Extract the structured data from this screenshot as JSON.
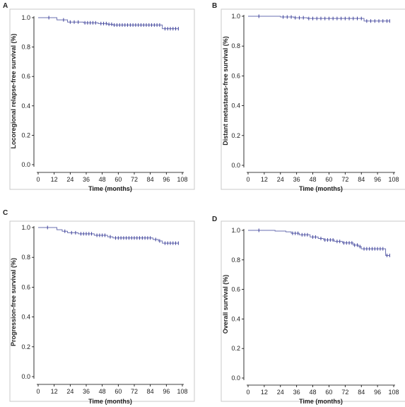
{
  "chart_data": [
    {
      "panel": "A",
      "type": "line",
      "xlabel": "Time (months)",
      "ylabel": "Locoregional relapse-free survival (%)",
      "xticks": [
        0,
        12,
        24,
        36,
        48,
        60,
        72,
        84,
        96,
        108
      ],
      "yticks": [
        "0.0",
        "0.2",
        "0.4",
        "0.6",
        "0.8",
        "1.0"
      ],
      "xlim": [
        0,
        108
      ],
      "ylim": [
        0,
        1.0
      ],
      "series": [
        {
          "steps": [
            [
              0,
              1.0
            ],
            [
              8,
              1.0
            ],
            [
              14,
              0.985
            ],
            [
              22,
              0.97
            ],
            [
              34,
              0.965
            ],
            [
              45,
              0.96
            ],
            [
              52,
              0.955
            ],
            [
              56,
              0.95
            ],
            [
              93,
              0.925
            ],
            [
              105,
              0.925
            ]
          ],
          "censored": [
            [
              8,
              1.0
            ],
            [
              19,
              0.985
            ],
            [
              24,
              0.97
            ],
            [
              27,
              0.97
            ],
            [
              30,
              0.97
            ],
            [
              35,
              0.965
            ],
            [
              37,
              0.965
            ],
            [
              39,
              0.965
            ],
            [
              41,
              0.965
            ],
            [
              43,
              0.965
            ],
            [
              47,
              0.96
            ],
            [
              49,
              0.96
            ],
            [
              51,
              0.96
            ],
            [
              53,
              0.955
            ],
            [
              55,
              0.955
            ],
            [
              57,
              0.95
            ],
            [
              59,
              0.95
            ],
            [
              61,
              0.95
            ],
            [
              63,
              0.95
            ],
            [
              65,
              0.95
            ],
            [
              67,
              0.95
            ],
            [
              69,
              0.95
            ],
            [
              71,
              0.95
            ],
            [
              73,
              0.95
            ],
            [
              75,
              0.95
            ],
            [
              77,
              0.95
            ],
            [
              79,
              0.95
            ],
            [
              81,
              0.95
            ],
            [
              83,
              0.95
            ],
            [
              85,
              0.95
            ],
            [
              87,
              0.95
            ],
            [
              89,
              0.95
            ],
            [
              91,
              0.95
            ],
            [
              95,
              0.925
            ],
            [
              97,
              0.925
            ],
            [
              99,
              0.925
            ],
            [
              101,
              0.925
            ],
            [
              103,
              0.925
            ],
            [
              105,
              0.925
            ]
          ]
        }
      ]
    },
    {
      "panel": "B",
      "type": "line",
      "xlabel": "Time (months)",
      "ylabel": "Distant metastases-free survival (%)",
      "xticks": [
        0,
        12,
        24,
        36,
        48,
        60,
        72,
        84,
        96,
        108
      ],
      "yticks": [
        "0.0",
        "0.2",
        "0.4",
        "0.6",
        "0.8",
        "1.0"
      ],
      "xlim": [
        0,
        108
      ],
      "ylim": [
        0,
        1.0
      ],
      "series": [
        {
          "steps": [
            [
              0,
              1.0
            ],
            [
              18,
              1.0
            ],
            [
              24,
              0.995
            ],
            [
              34,
              0.99
            ],
            [
              44,
              0.985
            ],
            [
              86,
              0.968
            ],
            [
              105,
              0.968
            ]
          ],
          "censored": [
            [
              8,
              1.0
            ],
            [
              26,
              0.995
            ],
            [
              29,
              0.995
            ],
            [
              32,
              0.995
            ],
            [
              35,
              0.99
            ],
            [
              38,
              0.99
            ],
            [
              41,
              0.99
            ],
            [
              45,
              0.985
            ],
            [
              48,
              0.985
            ],
            [
              51,
              0.985
            ],
            [
              54,
              0.985
            ],
            [
              57,
              0.985
            ],
            [
              60,
              0.985
            ],
            [
              63,
              0.985
            ],
            [
              66,
              0.985
            ],
            [
              69,
              0.985
            ],
            [
              72,
              0.985
            ],
            [
              75,
              0.985
            ],
            [
              78,
              0.985
            ],
            [
              81,
              0.985
            ],
            [
              84,
              0.985
            ],
            [
              88,
              0.968
            ],
            [
              91,
              0.968
            ],
            [
              94,
              0.968
            ],
            [
              97,
              0.968
            ],
            [
              100,
              0.968
            ],
            [
              103,
              0.968
            ],
            [
              105,
              0.968
            ]
          ]
        }
      ]
    },
    {
      "panel": "C",
      "type": "line",
      "xlabel": "Time (months)",
      "ylabel": "Progression-free survival (%)",
      "xticks": [
        0,
        12,
        24,
        36,
        48,
        60,
        72,
        84,
        96,
        108
      ],
      "yticks": [
        "0.0",
        "0.2",
        "0.4",
        "0.6",
        "0.8",
        "1.0"
      ],
      "xlim": [
        0,
        108
      ],
      "ylim": [
        0,
        1.0
      ],
      "series": [
        {
          "steps": [
            [
              0,
              1.0
            ],
            [
              10,
              1.0
            ],
            [
              14,
              0.985
            ],
            [
              18,
              0.975
            ],
            [
              22,
              0.965
            ],
            [
              30,
              0.958
            ],
            [
              42,
              0.948
            ],
            [
              52,
              0.938
            ],
            [
              56,
              0.93
            ],
            [
              86,
              0.92
            ],
            [
              90,
              0.91
            ],
            [
              93,
              0.895
            ],
            [
              105,
              0.895
            ]
          ],
          "censored": [
            [
              7,
              1.0
            ],
            [
              20,
              0.975
            ],
            [
              25,
              0.965
            ],
            [
              28,
              0.965
            ],
            [
              32,
              0.958
            ],
            [
              34,
              0.958
            ],
            [
              36,
              0.958
            ],
            [
              38,
              0.958
            ],
            [
              40,
              0.958
            ],
            [
              44,
              0.948
            ],
            [
              46,
              0.948
            ],
            [
              48,
              0.948
            ],
            [
              50,
              0.948
            ],
            [
              54,
              0.938
            ],
            [
              58,
              0.93
            ],
            [
              60,
              0.93
            ],
            [
              62,
              0.93
            ],
            [
              64,
              0.93
            ],
            [
              66,
              0.93
            ],
            [
              68,
              0.93
            ],
            [
              70,
              0.93
            ],
            [
              72,
              0.93
            ],
            [
              74,
              0.93
            ],
            [
              76,
              0.93
            ],
            [
              78,
              0.93
            ],
            [
              80,
              0.93
            ],
            [
              82,
              0.93
            ],
            [
              84,
              0.93
            ],
            [
              88,
              0.92
            ],
            [
              91,
              0.91
            ],
            [
              95,
              0.895
            ],
            [
              97,
              0.895
            ],
            [
              99,
              0.895
            ],
            [
              101,
              0.895
            ],
            [
              103,
              0.895
            ],
            [
              105,
              0.895
            ]
          ]
        }
      ]
    },
    {
      "panel": "D",
      "type": "line",
      "xlabel": "Time (months)",
      "ylabel": "Overall survival (%)",
      "xticks": [
        0,
        12,
        24,
        36,
        48,
        60,
        72,
        84,
        96,
        108
      ],
      "yticks": [
        "0.0",
        "0.2",
        "0.4",
        "0.6",
        "0.8",
        "1.0"
      ],
      "xlim": [
        0,
        108
      ],
      "ylim": [
        0,
        1.0
      ],
      "series": [
        {
          "steps": [
            [
              0,
              1.0
            ],
            [
              20,
              0.995
            ],
            [
              28,
              0.99
            ],
            [
              32,
              0.98
            ],
            [
              38,
              0.97
            ],
            [
              46,
              0.955
            ],
            [
              52,
              0.945
            ],
            [
              56,
              0.935
            ],
            [
              64,
              0.925
            ],
            [
              70,
              0.915
            ],
            [
              78,
              0.9
            ],
            [
              82,
              0.89
            ],
            [
              84,
              0.875
            ],
            [
              102,
              0.83
            ],
            [
              105,
              0.83
            ]
          ],
          "censored": [
            [
              8,
              1.0
            ],
            [
              33,
              0.98
            ],
            [
              35,
              0.98
            ],
            [
              37,
              0.98
            ],
            [
              40,
              0.97
            ],
            [
              42,
              0.97
            ],
            [
              44,
              0.97
            ],
            [
              48,
              0.955
            ],
            [
              50,
              0.955
            ],
            [
              54,
              0.945
            ],
            [
              57,
              0.935
            ],
            [
              59,
              0.935
            ],
            [
              61,
              0.935
            ],
            [
              63,
              0.935
            ],
            [
              66,
              0.925
            ],
            [
              68,
              0.925
            ],
            [
              71,
              0.915
            ],
            [
              73,
              0.915
            ],
            [
              75,
              0.915
            ],
            [
              77,
              0.915
            ],
            [
              79,
              0.9
            ],
            [
              81,
              0.9
            ],
            [
              83,
              0.89
            ],
            [
              86,
              0.875
            ],
            [
              88,
              0.875
            ],
            [
              90,
              0.875
            ],
            [
              92,
              0.875
            ],
            [
              94,
              0.875
            ],
            [
              96,
              0.875
            ],
            [
              98,
              0.875
            ],
            [
              100,
              0.875
            ],
            [
              103,
              0.83
            ],
            [
              105,
              0.83
            ]
          ]
        }
      ]
    }
  ]
}
